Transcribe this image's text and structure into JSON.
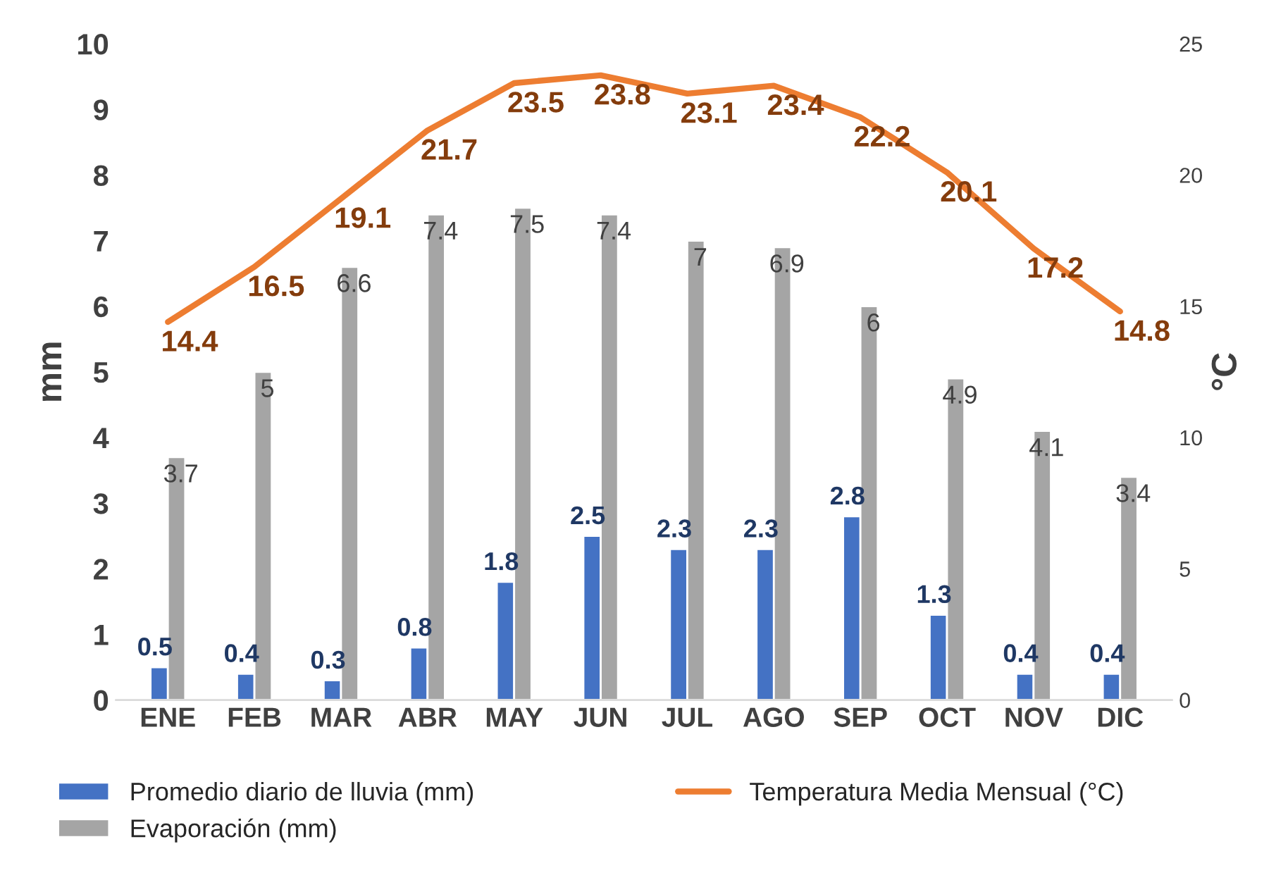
{
  "chart_data": {
    "type": "bar",
    "ylabel": "mm",
    "y2label": "°C",
    "categories": [
      "ENE",
      "FEB",
      "MAR",
      "ABR",
      "MAY",
      "JUN",
      "JUL",
      "AGO",
      "SEP",
      "OCT",
      "NOV",
      "DIC"
    ],
    "series": [
      {
        "name": "Promedio diario de lluvia (mm)",
        "color": "#4472c4",
        "values": [
          0.5,
          0.4,
          0.3,
          0.8,
          1.8,
          2.5,
          2.3,
          2.3,
          2.8,
          1.3,
          0.4,
          0.4
        ]
      },
      {
        "name": "Evaporación (mm)",
        "color": "#a5a5a5",
        "values": [
          3.7,
          5,
          6.6,
          7.4,
          7.5,
          7.4,
          7,
          6.9,
          6,
          4.9,
          4.1,
          3.4
        ]
      },
      {
        "name": "Temperatura Media Mensual (°C)",
        "type": "line",
        "axis": "y2",
        "color": "#ed7d31",
        "values": [
          14.4,
          16.5,
          19.1,
          21.7,
          23.5,
          23.8,
          23.1,
          23.4,
          22.2,
          20.1,
          17.2,
          14.8
        ]
      }
    ],
    "ylim": [
      0,
      10
    ],
    "yticks": [
      0,
      1,
      2,
      3,
      4,
      5,
      6,
      7,
      8,
      9,
      10
    ],
    "y2lim": [
      0,
      25
    ],
    "y2ticks": [
      0,
      5,
      10,
      15,
      20,
      25
    ],
    "data_labels": true,
    "legend": "bottom",
    "grid": false
  }
}
